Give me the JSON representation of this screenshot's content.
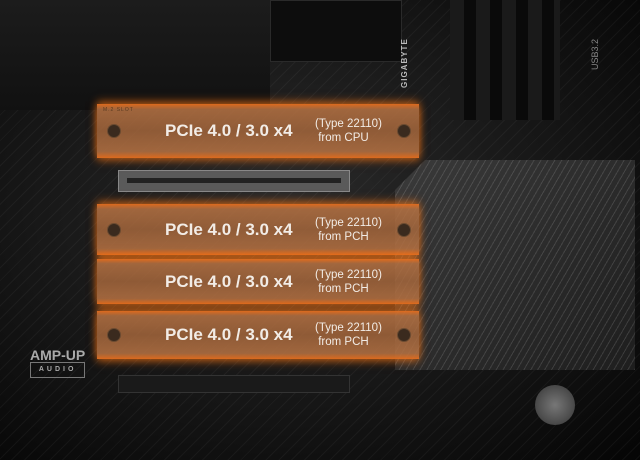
{
  "board": {
    "brand": "GIGABYTE",
    "usb_label": "USB3.2",
    "audio_logo": "AMP-UP",
    "audio_logo_sub": "AUDIO",
    "slot_label": "M.2 SLOT"
  },
  "colors": {
    "accent": "#e8731e",
    "bar_fill": "#a8683c",
    "text": "#f2ece6"
  },
  "slots": [
    {
      "interface": "PCIe 4.0 / 3.0 x4",
      "type": "(Type 22110)",
      "source": "from CPU"
    },
    {
      "interface": "PCIe 4.0 / 3.0 x4",
      "type": "(Type 22110)",
      "source": "from PCH"
    },
    {
      "interface": "PCIe 4.0 / 3.0 x4",
      "type": "(Type 22110)",
      "source": "from PCH"
    },
    {
      "interface": "PCIe 4.0 / 3.0 x4",
      "type": "(Type 22110)",
      "source": "from PCH"
    }
  ]
}
